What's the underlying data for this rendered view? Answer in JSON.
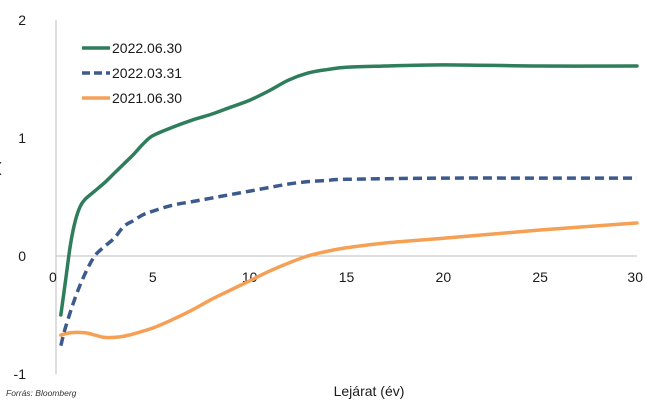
{
  "chart_data": {
    "type": "line",
    "title": "",
    "xlabel": "Lejárat (év)",
    "ylabel_fragment": "(",
    "xlim": [
      0,
      30
    ],
    "ylim": [
      -1,
      2
    ],
    "x_ticks": [
      0,
      5,
      10,
      15,
      20,
      25,
      30
    ],
    "y_ticks": [
      -1,
      0,
      1,
      2
    ],
    "grid": false,
    "legend_position": "top-left",
    "source": "Forrás: Bloomberg",
    "series": [
      {
        "name": "2022.06.30",
        "color": "#2e7d5b",
        "style": "solid",
        "points": [
          [
            0.25,
            -0.5
          ],
          [
            0.5,
            -0.2
          ],
          [
            0.75,
            0.1
          ],
          [
            1,
            0.3
          ],
          [
            1.25,
            0.42
          ],
          [
            1.5,
            0.48
          ],
          [
            2,
            0.55
          ],
          [
            2.5,
            0.62
          ],
          [
            3,
            0.7
          ],
          [
            3.5,
            0.78
          ],
          [
            4,
            0.86
          ],
          [
            4.5,
            0.95
          ],
          [
            5,
            1.02
          ],
          [
            6,
            1.09
          ],
          [
            7,
            1.15
          ],
          [
            8,
            1.2
          ],
          [
            9,
            1.26
          ],
          [
            10,
            1.32
          ],
          [
            11,
            1.4
          ],
          [
            12,
            1.49
          ],
          [
            13,
            1.55
          ],
          [
            14,
            1.58
          ],
          [
            15,
            1.6
          ],
          [
            17,
            1.61
          ],
          [
            20,
            1.62
          ],
          [
            25,
            1.61
          ],
          [
            30,
            1.61
          ]
        ]
      },
      {
        "name": "2022.03.31",
        "color": "#3c5a8c",
        "style": "dashed",
        "points": [
          [
            0.25,
            -0.76
          ],
          [
            0.5,
            -0.6
          ],
          [
            1,
            -0.35
          ],
          [
            1.5,
            -0.15
          ],
          [
            2,
            0.0
          ],
          [
            2.5,
            0.08
          ],
          [
            3,
            0.15
          ],
          [
            3.5,
            0.25
          ],
          [
            4,
            0.3
          ],
          [
            4.5,
            0.35
          ],
          [
            5,
            0.38
          ],
          [
            6,
            0.43
          ],
          [
            7,
            0.46
          ],
          [
            8,
            0.49
          ],
          [
            9,
            0.52
          ],
          [
            10,
            0.55
          ],
          [
            11,
            0.58
          ],
          [
            12,
            0.61
          ],
          [
            13,
            0.63
          ],
          [
            14,
            0.64
          ],
          [
            15,
            0.65
          ],
          [
            20,
            0.66
          ],
          [
            25,
            0.66
          ],
          [
            30,
            0.66
          ]
        ]
      },
      {
        "name": "2021.06.30",
        "color": "#f5a055",
        "style": "solid",
        "points": [
          [
            0.25,
            -0.67
          ],
          [
            0.75,
            -0.65
          ],
          [
            1.5,
            -0.65
          ],
          [
            2,
            -0.67
          ],
          [
            2.5,
            -0.69
          ],
          [
            3,
            -0.69
          ],
          [
            3.5,
            -0.68
          ],
          [
            4,
            -0.66
          ],
          [
            5,
            -0.61
          ],
          [
            6,
            -0.54
          ],
          [
            7,
            -0.46
          ],
          [
            8,
            -0.37
          ],
          [
            9,
            -0.29
          ],
          [
            10,
            -0.21
          ],
          [
            11,
            -0.13
          ],
          [
            12,
            -0.06
          ],
          [
            13,
            0.0
          ],
          [
            14,
            0.04
          ],
          [
            15,
            0.07
          ],
          [
            17,
            0.11
          ],
          [
            20,
            0.15
          ],
          [
            25,
            0.22
          ],
          [
            30,
            0.28
          ]
        ]
      }
    ]
  }
}
